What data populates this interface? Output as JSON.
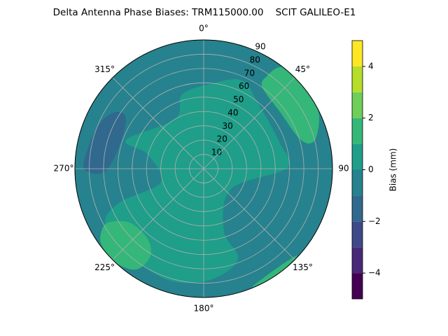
{
  "chart_data": {
    "type": "polar-contour",
    "title": "Delta Antenna Phase Biases: TRM115000.00    SCIT GALILEO-E1",
    "rlim": [
      0,
      90
    ],
    "rticks": [
      10,
      20,
      30,
      40,
      50,
      60,
      70,
      80,
      90
    ],
    "thetaticks": [
      {
        "value": 0,
        "label": "0°"
      },
      {
        "value": 45,
        "label": "45°"
      },
      {
        "value": 90,
        "label": "90"
      },
      {
        "value": 135,
        "label": "135°"
      },
      {
        "value": 180,
        "label": "180°"
      },
      {
        "value": 225,
        "label": "225°"
      },
      {
        "value": 270,
        "label": "270°"
      },
      {
        "value": 315,
        "label": "315°"
      }
    ],
    "grid": true,
    "levels": [
      -5,
      -4,
      -3,
      -2,
      -1,
      0,
      1,
      2,
      3,
      4,
      5
    ],
    "colors": [
      "#440154",
      "#482878",
      "#3e4989",
      "#31688e",
      "#26828e",
      "#1f9e89",
      "#35b779",
      "#6ece58",
      "#b5de2b",
      "#fde725"
    ],
    "base_level": -1,
    "regions": [
      {
        "level": 0,
        "points": [
          [
            343.7,
            54.0
          ],
          [
            4.3,
            59.3
          ],
          [
            23.2,
            67.1
          ],
          [
            41.0,
            58.9
          ],
          [
            71.7,
            56.2
          ],
          [
            89.5,
            58.2
          ],
          [
            126.6,
            23.8
          ],
          [
            162.0,
            45.8
          ],
          [
            159.2,
            67.5
          ],
          [
            176.8,
            77.9
          ],
          [
            197.8,
            81.7
          ],
          [
            223.0,
            79.6
          ],
          [
            240.7,
            79.1
          ],
          [
            248.0,
            63.8
          ],
          [
            252.7,
            31.3
          ],
          [
            284.5,
            40.9
          ],
          [
            290.3,
            57.9
          ],
          [
            330.0,
            40.1
          ]
        ]
      },
      {
        "level": 1,
        "points": [
          [
            34.2,
            77.5
          ],
          [
            38.0,
            90
          ],
          [
            51.1,
            90
          ],
          [
            63.7,
            89.5
          ],
          [
            75.5,
            80.3
          ],
          [
            73.6,
            70.9
          ],
          [
            53.4,
            66.4
          ],
          [
            35.9,
            70.0
          ]
        ]
      },
      {
        "level": 1,
        "points": [
          [
            238.6,
            83.6
          ],
          [
            240.5,
            76.4
          ],
          [
            234.0,
            64.1
          ],
          [
            219.3,
            62.6
          ],
          [
            211.5,
            71.1
          ],
          [
            213.7,
            84.6
          ],
          [
            223.2,
            90
          ],
          [
            233.3,
            89.1
          ]
        ]
      },
      {
        "level": 1,
        "points": [
          [
            157.8,
            89.3
          ],
          [
            141.9,
            86.4
          ],
          [
            132.8,
            89.3
          ],
          [
            145.0,
            90
          ]
        ]
      },
      {
        "level": -2,
        "points": [
          [
            273.7,
            83.8
          ],
          [
            292.0,
            79.7
          ],
          [
            302.7,
            73.3
          ],
          [
            302.6,
            64.5
          ],
          [
            284.4,
            61.1
          ],
          [
            268.4,
            69.0
          ],
          [
            268.6,
            81.2
          ]
        ]
      }
    ],
    "colorbar": {
      "label": "Bias (mm)",
      "clim": [
        -5,
        5
      ],
      "ticks": [
        {
          "value": -4,
          "label": "−4"
        },
        {
          "value": -2,
          "label": "−2"
        },
        0,
        2,
        4
      ]
    }
  }
}
